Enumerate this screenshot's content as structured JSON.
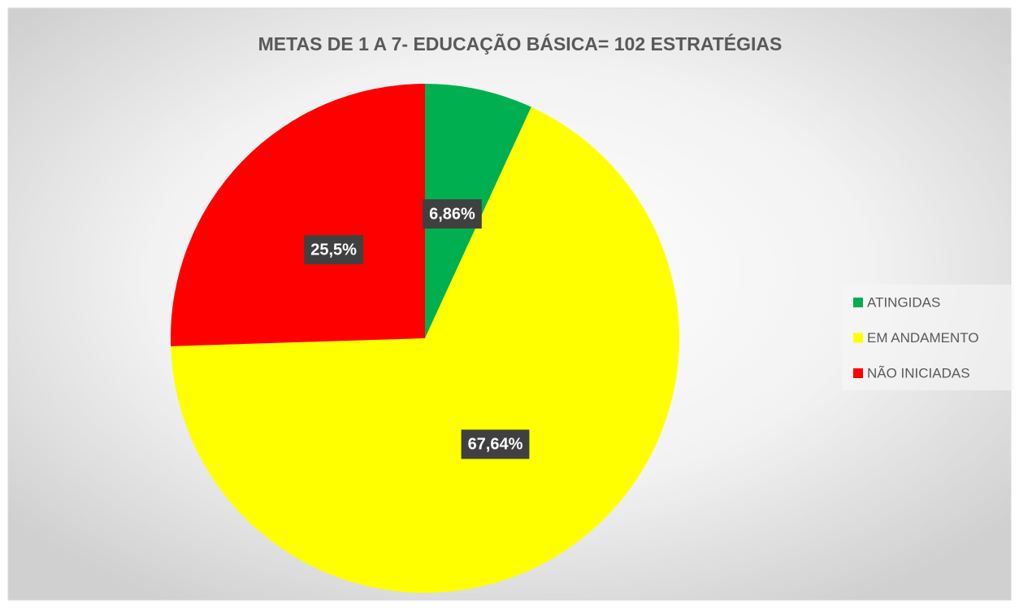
{
  "chart_data": {
    "type": "pie",
    "title": "METAS DE 1 A 7- EDUCAÇÃO BÁSICA= 102 ESTRATÉGIAS",
    "categories": [
      "ATINGIDAS",
      "EM ANDAMENTO",
      "NÃO INICIADAS"
    ],
    "values": [
      6.86,
      67.64,
      25.5
    ],
    "value_labels": [
      "6,86%",
      "67,64%",
      "25,5%"
    ],
    "colors": [
      "#00b050",
      "#ffff00",
      "#ff0000"
    ],
    "legend": "right"
  }
}
